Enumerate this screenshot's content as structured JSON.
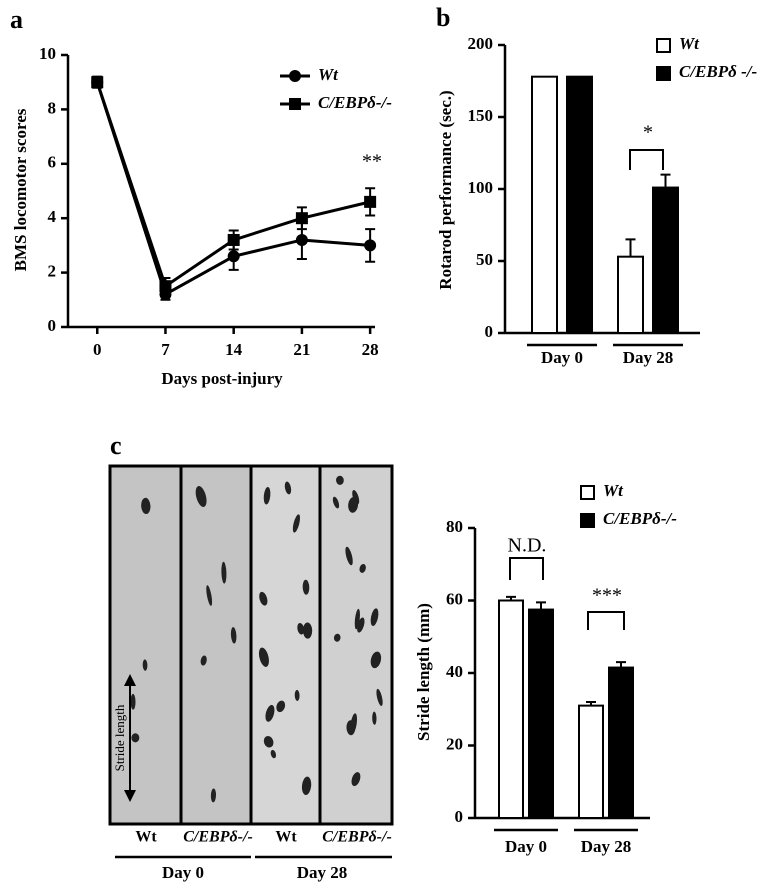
{
  "chart_data": [
    {
      "type": "line",
      "panel_label": "a",
      "x_label": "Days post-injury",
      "y_label": "BMS locomotor scores",
      "x": [
        0,
        7,
        14,
        21,
        28
      ],
      "xlim": [
        -3,
        28.5
      ],
      "xticks": [
        0,
        7,
        14,
        21,
        28
      ],
      "ylim": [
        0,
        10
      ],
      "yticks": [
        0,
        2,
        4,
        6,
        8,
        10
      ],
      "series": [
        {
          "name": "Wt",
          "color": "#000000",
          "marker": "circle",
          "values": [
            9,
            1.2,
            2.6,
            3.2,
            3.0
          ],
          "errors": [
            0.2,
            0.2,
            0.5,
            0.7,
            0.6
          ]
        },
        {
          "name": "C/EBPδ-/-",
          "color": "#000000",
          "marker": "square",
          "values": [
            9,
            1.5,
            3.2,
            4.0,
            4.6
          ],
          "errors": [
            0.2,
            0.3,
            0.35,
            0.4,
            0.5
          ]
        }
      ],
      "annotations": [
        "**"
      ]
    },
    {
      "type": "bar",
      "panel_label": "b",
      "y_label": "Rotarod performance (sec.)",
      "categories": [
        "Day 0",
        "Day 28"
      ],
      "ylim": [
        0,
        200
      ],
      "yticks": [
        0,
        50,
        100,
        150,
        200
      ],
      "series": [
        {
          "name": "Wt",
          "color": "#ffffff",
          "values": [
            178,
            53
          ],
          "errors": [
            null,
            12
          ]
        },
        {
          "name": "C/EBPδ -/-",
          "color": "#000000",
          "values": [
            178,
            101
          ],
          "errors": [
            null,
            9
          ]
        }
      ],
      "annotations": [
        "*"
      ]
    },
    {
      "type": "bar",
      "panel_label": "c",
      "y_label": "Stride length (mm)",
      "categories": [
        "Day 0",
        "Day 28"
      ],
      "ylim": [
        0,
        80
      ],
      "yticks": [
        0,
        20,
        40,
        60,
        80
      ],
      "series": [
        {
          "name": "Wt",
          "color": "#ffffff",
          "values": [
            60,
            31
          ],
          "errors": [
            1,
            1
          ]
        },
        {
          "name": "C/EBPδ-/-",
          "color": "#000000",
          "values": [
            57.5,
            41.5
          ],
          "errors": [
            2,
            1.5
          ]
        }
      ],
      "annotations": [
        "N.D.",
        "***"
      ]
    }
  ],
  "footprint_image": {
    "lane_labels": [
      "Wt",
      "C/EBPδ-/-",
      "Wt",
      "C/EBPδ-/-"
    ],
    "groups": [
      "Day 0",
      "Day 28"
    ],
    "scale_label": "Stride length"
  }
}
